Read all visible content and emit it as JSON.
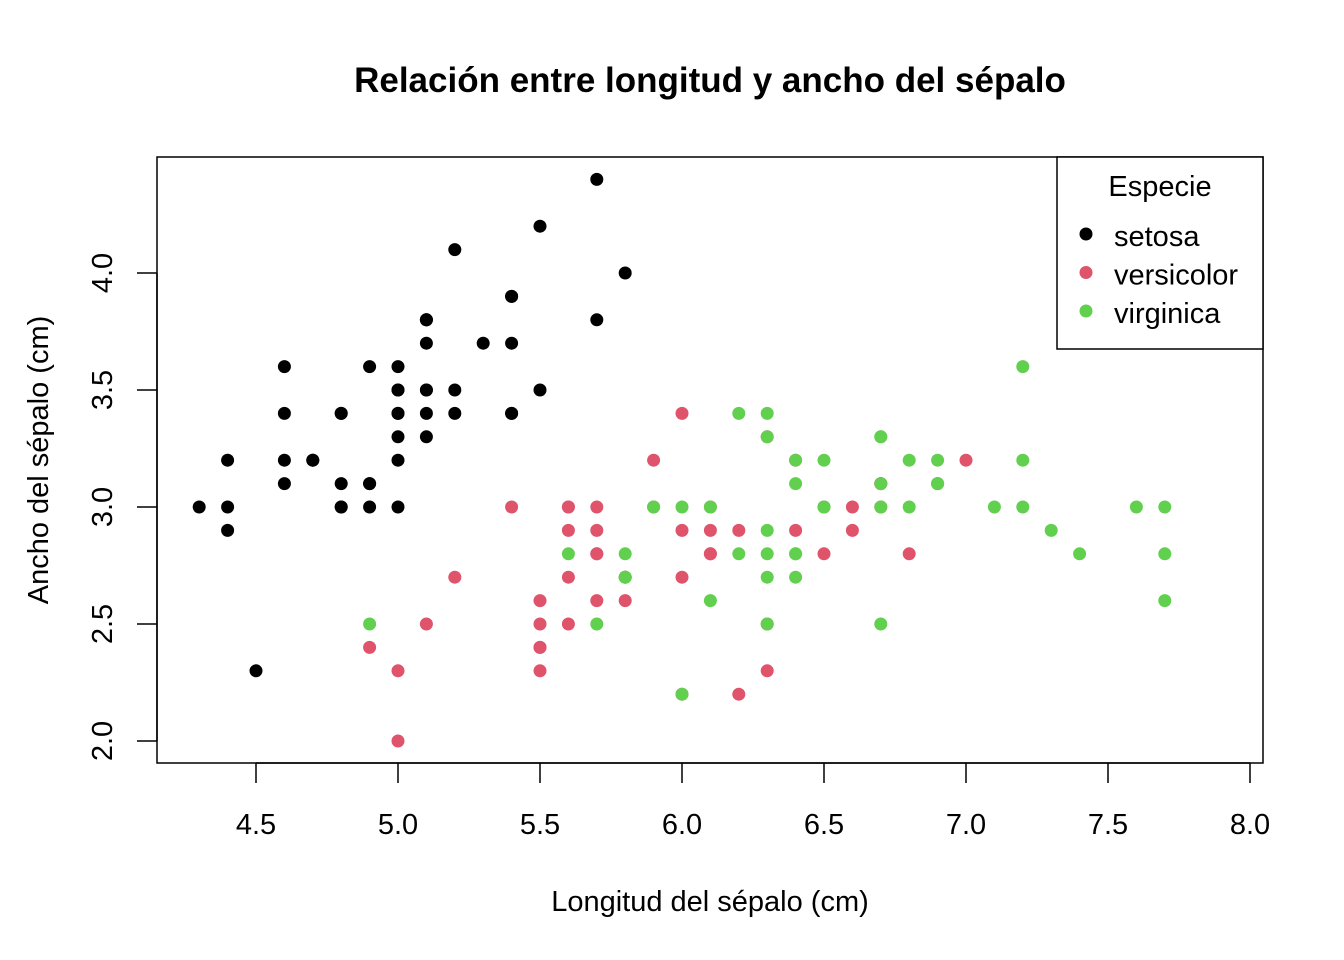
{
  "chart_data": {
    "type": "scatter",
    "title": "Relación entre longitud y ancho del sépalo",
    "xlabel": "Longitud del sépalo (cm)",
    "ylabel": "Ancho del sépalo (cm)",
    "xlim": [
      4.3,
      8.0
    ],
    "ylim": [
      2.0,
      4.4
    ],
    "x_ticks": [
      "4.5",
      "5.0",
      "5.5",
      "6.0",
      "6.5",
      "7.0",
      "7.5",
      "8.0"
    ],
    "y_ticks": [
      "2.0",
      "2.5",
      "3.0",
      "3.5",
      "4.0"
    ],
    "grid": false,
    "legend": {
      "title": "Especie",
      "placement": "top-right",
      "entries": [
        "setosa",
        "versicolor",
        "virginica"
      ]
    },
    "series": [
      {
        "name": "setosa",
        "color": "#000000",
        "x": [
          5.1,
          4.9,
          4.7,
          4.6,
          5.0,
          5.4,
          4.6,
          5.0,
          4.4,
          4.9,
          5.4,
          4.8,
          4.8,
          4.3,
          5.8,
          5.7,
          5.4,
          5.1,
          5.7,
          5.1,
          5.4,
          5.1,
          4.6,
          5.1,
          4.8,
          5.0,
          5.0,
          5.2,
          5.2,
          4.7,
          4.8,
          5.4,
          5.2,
          5.5,
          4.9,
          5.0,
          5.5,
          4.9,
          4.4,
          5.1,
          5.0,
          4.5,
          4.4,
          5.0,
          5.1,
          4.8,
          5.1,
          4.6,
          5.3,
          5.0
        ],
        "y": [
          3.5,
          3.0,
          3.2,
          3.1,
          3.6,
          3.9,
          3.4,
          3.4,
          2.9,
          3.1,
          3.7,
          3.4,
          3.0,
          3.0,
          4.0,
          4.4,
          3.9,
          3.5,
          3.8,
          3.8,
          3.4,
          3.7,
          3.6,
          3.3,
          3.4,
          3.0,
          3.4,
          3.5,
          3.4,
          3.2,
          3.1,
          3.4,
          4.1,
          4.2,
          3.1,
          3.2,
          3.5,
          3.6,
          3.0,
          3.4,
          3.5,
          2.3,
          3.2,
          3.5,
          3.8,
          3.0,
          3.8,
          3.2,
          3.7,
          3.3
        ]
      },
      {
        "name": "versicolor",
        "color": "#DF536B",
        "x": [
          7.0,
          6.4,
          6.9,
          5.5,
          6.5,
          5.7,
          6.3,
          4.9,
          6.6,
          5.2,
          5.0,
          5.9,
          6.0,
          6.1,
          5.6,
          6.7,
          5.6,
          5.8,
          6.2,
          5.6,
          5.9,
          6.1,
          6.3,
          6.1,
          6.4,
          6.6,
          6.8,
          6.7,
          6.0,
          5.7,
          5.5,
          5.5,
          5.8,
          6.0,
          5.4,
          6.0,
          6.7,
          6.3,
          5.6,
          5.5,
          5.5,
          6.1,
          5.8,
          5.0,
          5.6,
          5.7,
          5.7,
          6.2,
          5.1,
          5.7
        ],
        "y": [
          3.2,
          3.2,
          3.1,
          2.3,
          2.8,
          2.8,
          3.3,
          2.4,
          2.9,
          2.7,
          2.0,
          3.0,
          2.2,
          2.9,
          2.9,
          3.1,
          3.0,
          2.7,
          2.2,
          2.5,
          3.2,
          2.8,
          2.5,
          2.8,
          2.9,
          3.0,
          2.8,
          3.0,
          2.9,
          2.6,
          2.4,
          2.4,
          2.7,
          2.7,
          3.0,
          3.4,
          3.1,
          2.3,
          3.0,
          2.5,
          2.6,
          3.0,
          2.6,
          2.3,
          2.7,
          3.0,
          2.9,
          2.9,
          2.5,
          2.8
        ]
      },
      {
        "name": "virginica",
        "color": "#61D04F",
        "x": [
          6.3,
          5.8,
          7.1,
          6.3,
          6.5,
          7.6,
          4.9,
          7.3,
          6.7,
          7.2,
          6.5,
          6.4,
          6.8,
          5.7,
          5.8,
          6.4,
          6.5,
          7.7,
          6.0,
          6.9,
          5.6,
          7.7,
          6.3,
          6.7,
          7.2,
          6.2,
          6.1,
          6.4,
          7.2,
          7.4,
          6.4,
          6.3,
          6.1,
          7.7,
          6.3,
          6.4,
          6.0,
          6.9,
          6.7,
          6.9,
          5.8,
          6.8,
          6.7,
          6.7,
          6.3,
          6.5,
          6.2,
          5.9
        ],
        "y": [
          3.3,
          2.7,
          3.0,
          2.9,
          3.0,
          3.0,
          2.5,
          2.9,
          2.5,
          3.6,
          3.2,
          2.7,
          3.0,
          2.5,
          2.8,
          3.2,
          3.0,
          2.6,
          2.2,
          3.2,
          2.8,
          2.8,
          2.7,
          3.3,
          3.2,
          2.8,
          3.0,
          2.8,
          3.0,
          2.8,
          2.8,
          2.8,
          2.6,
          3.0,
          3.4,
          3.1,
          3.0,
          3.1,
          3.1,
          3.1,
          2.7,
          3.2,
          3.3,
          3.0,
          2.5,
          3.0,
          3.4,
          3.0
        ]
      }
    ]
  }
}
